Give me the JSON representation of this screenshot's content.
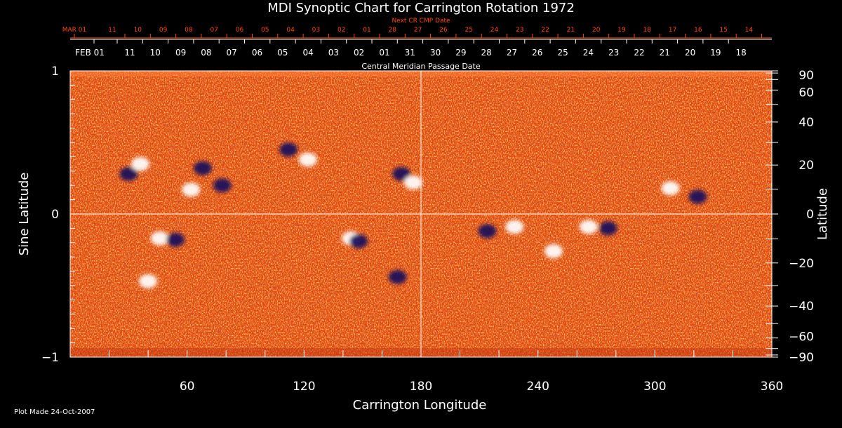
{
  "colors": {
    "background": "#000000",
    "text": "#ffffff",
    "next_cr_text": "#ff4a00",
    "map_base": "#e2440e",
    "positive_polarity": "#ffffff",
    "negative_polarity": "#14085c",
    "grid": "#ffffff"
  },
  "chart_data": {
    "type": "heatmap",
    "title": "MDI Synoptic Chart for Carrington Rotation 1972",
    "xlabel": "Carrington Longitude",
    "ylabel_left": "Sine Latitude",
    "ylabel_right": "Latitude",
    "top_axis_label": "Central Meridian Passage Date",
    "next_cr_label": "Next CR CMP Date",
    "footer": "Plot Made 24-Oct-2007",
    "xlim": [
      0,
      360
    ],
    "ylim": [
      -1,
      1
    ],
    "grid": "lines at longitude 180 and sine latitude 0",
    "x_ticks": [
      "60",
      "120",
      "180",
      "240",
      "300",
      "360"
    ],
    "left_y_ticks": [
      "1",
      "0",
      "−1"
    ],
    "right_y_ticks": [
      "90",
      "60",
      "40",
      "20",
      "0",
      "−20",
      "−40",
      "−60",
      "−90"
    ],
    "cmp_dates": [
      "FEB 01",
      "11",
      "10",
      "09",
      "08",
      "07",
      "06",
      "05",
      "04",
      "03",
      "02",
      "01",
      "31",
      "30",
      "29",
      "28",
      "27",
      "26",
      "25",
      "24",
      "23",
      "22",
      "21",
      "20",
      "19",
      "18"
    ],
    "next_cr_dates": [
      "MAR 01",
      "11",
      "10",
      "09",
      "08",
      "07",
      "06",
      "05",
      "04",
      "03",
      "02",
      "01",
      "28",
      "27",
      "26",
      "25",
      "24",
      "23",
      "22",
      "21",
      "20",
      "19",
      "18",
      "17",
      "16",
      "15",
      "14"
    ],
    "active_regions": [
      {
        "lon": 46,
        "sinlat": -0.17,
        "polarity": "positive"
      },
      {
        "lon": 54,
        "sinlat": -0.18,
        "polarity": "negative"
      },
      {
        "lon": 30,
        "sinlat": 0.28,
        "polarity": "negative"
      },
      {
        "lon": 36,
        "sinlat": 0.35,
        "polarity": "positive"
      },
      {
        "lon": 62,
        "sinlat": 0.17,
        "polarity": "positive"
      },
      {
        "lon": 68,
        "sinlat": 0.32,
        "polarity": "negative"
      },
      {
        "lon": 78,
        "sinlat": 0.2,
        "polarity": "negative"
      },
      {
        "lon": 112,
        "sinlat": 0.45,
        "polarity": "negative"
      },
      {
        "lon": 122,
        "sinlat": 0.38,
        "polarity": "positive"
      },
      {
        "lon": 144,
        "sinlat": -0.17,
        "polarity": "positive"
      },
      {
        "lon": 148,
        "sinlat": -0.19,
        "polarity": "negative"
      },
      {
        "lon": 170,
        "sinlat": 0.28,
        "polarity": "negative"
      },
      {
        "lon": 176,
        "sinlat": 0.22,
        "polarity": "positive"
      },
      {
        "lon": 214,
        "sinlat": -0.12,
        "polarity": "negative"
      },
      {
        "lon": 228,
        "sinlat": -0.09,
        "polarity": "positive"
      },
      {
        "lon": 248,
        "sinlat": -0.26,
        "polarity": "positive"
      },
      {
        "lon": 266,
        "sinlat": -0.09,
        "polarity": "positive"
      },
      {
        "lon": 276,
        "sinlat": -0.1,
        "polarity": "negative"
      },
      {
        "lon": 308,
        "sinlat": 0.18,
        "polarity": "positive"
      },
      {
        "lon": 322,
        "sinlat": 0.12,
        "polarity": "negative"
      },
      {
        "lon": 40,
        "sinlat": -0.47,
        "polarity": "positive"
      },
      {
        "lon": 168,
        "sinlat": -0.44,
        "polarity": "negative"
      }
    ]
  }
}
